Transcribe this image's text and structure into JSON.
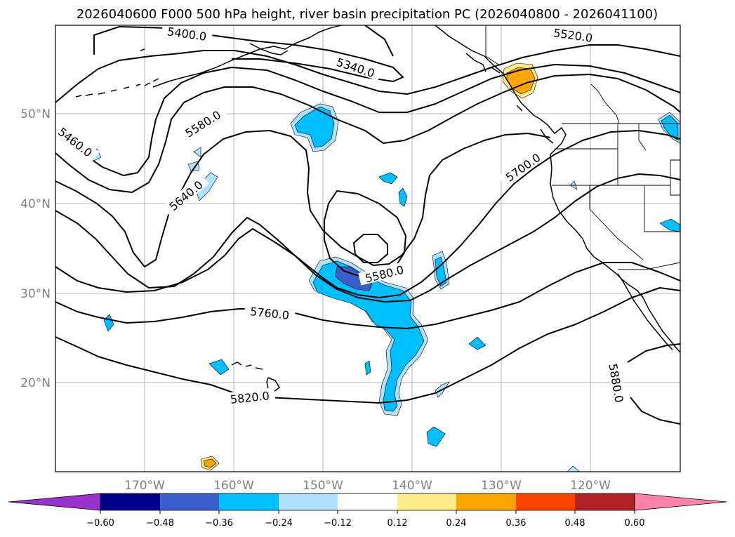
{
  "title": "2026040600 F000 500 hPa height, river basin precipitation PC (2026040800 - 2026041100)",
  "lat_labels": [
    "50°N",
    "40°N",
    "30°N",
    "20°N"
  ],
  "lon_labels": [
    "170°W",
    "160°W",
    "150°W",
    "140°W",
    "130°W",
    "120°W"
  ],
  "contour_labels": {
    "c5400": "5400.0",
    "c5340": "5340.0",
    "c5520": "5520.0",
    "c5460": "5460.0",
    "c5580a": "5580.0",
    "c5640": "5640.0",
    "c5700": "5700.0",
    "c5580b": "5580.0",
    "c5760": "5760.0",
    "c5820": "5820.0",
    "c5880": "5880.0"
  },
  "colorbar": {
    "ticks": [
      "−0.60",
      "−0.48",
      "−0.36",
      "−0.24",
      "−0.12",
      "0.12",
      "0.24",
      "0.36",
      "0.48",
      "0.60"
    ],
    "colors": {
      "lt_minus_0_60": "#9932cc",
      "b_minus_0_60_0_48": "#00008b",
      "b_minus_0_48_0_36": "#3a5fcd",
      "b_minus_0_36_0_24": "#00bfff",
      "b_minus_0_24_0_12": "#b0e2ff",
      "b_minus_0_12_0_12": "#ffffff",
      "b_0_12_0_24": "#ffec8b",
      "b_0_24_0_36": "#ffa500",
      "b_0_36_0_48": "#ff4500",
      "b_0_48_0_60": "#b22222",
      "gt_0_60": "#ff82ab"
    }
  }
}
